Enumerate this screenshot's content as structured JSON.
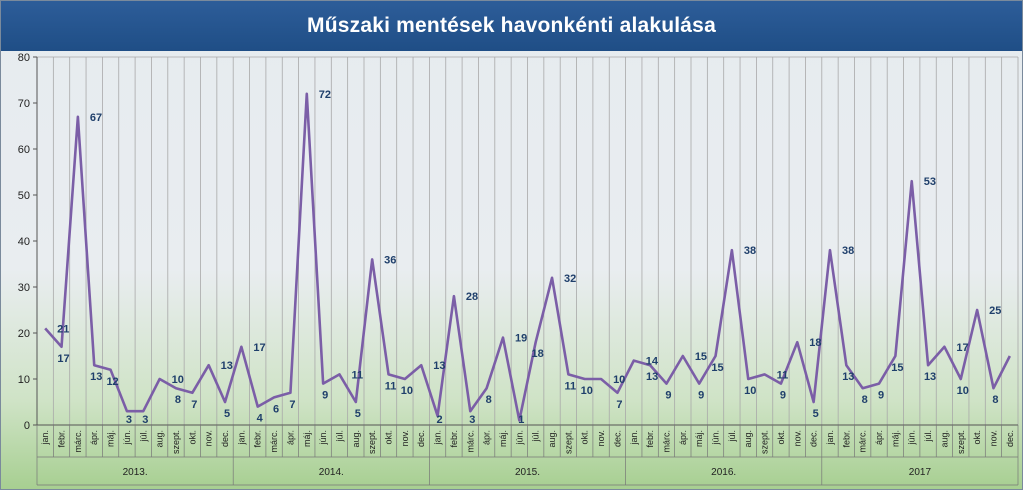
{
  "title": "Műszaki mentések havonkénti alakulása",
  "colors": {
    "line": "#7b5ea7",
    "labels": "#1f3f6b",
    "title_bg": "#24528b",
    "grid": "#a9a9a9"
  },
  "chart_data": {
    "type": "line",
    "title": "Műszaki mentések havonkénti alakulása",
    "xlabel": "",
    "ylabel": "",
    "ylim": [
      0,
      80
    ],
    "yticks": [
      0,
      10,
      20,
      30,
      40,
      50,
      60,
      70,
      80
    ],
    "grid": true,
    "legend": "none",
    "months": [
      "jan.",
      "febr.",
      "márc.",
      "ápr.",
      "máj.",
      "jún.",
      "júl.",
      "aug.",
      "szept.",
      "okt.",
      "nov.",
      "dec."
    ],
    "years": [
      "2013.",
      "2014.",
      "2015.",
      "2016.",
      "2017"
    ],
    "series": [
      {
        "values": [
          21,
          17,
          67,
          13,
          12,
          3,
          3,
          10,
          8,
          7,
          13,
          5,
          17,
          4,
          6,
          7,
          72,
          9,
          11,
          5,
          36,
          11,
          10,
          13,
          2,
          28,
          3,
          8,
          19,
          1,
          18,
          32,
          11,
          10,
          10,
          7,
          14,
          13,
          9,
          15,
          9,
          15,
          38,
          10,
          11,
          9,
          18,
          5,
          38,
          13,
          8,
          9,
          15,
          53,
          13,
          17,
          10,
          25,
          8,
          15
        ],
        "labels": [
          "21",
          "17",
          "67",
          "13",
          "12",
          "3",
          "3",
          "10",
          "8",
          "7",
          "13",
          "5",
          "17",
          "4",
          "6",
          "7",
          "72",
          "9",
          "11",
          "5",
          "36",
          "11",
          "10",
          "13",
          "2",
          "28",
          "3",
          "8",
          "19",
          "1",
          "18",
          "32",
          "11",
          "10",
          "10",
          "7",
          "14",
          "13",
          "9",
          "15",
          "9",
          "15",
          "38",
          "10",
          "11",
          "9",
          "18",
          "5",
          "38",
          "13",
          "8",
          "9",
          "15",
          "53",
          "13",
          "17",
          "10",
          "25",
          "8",
          "15"
        ]
      }
    ]
  }
}
